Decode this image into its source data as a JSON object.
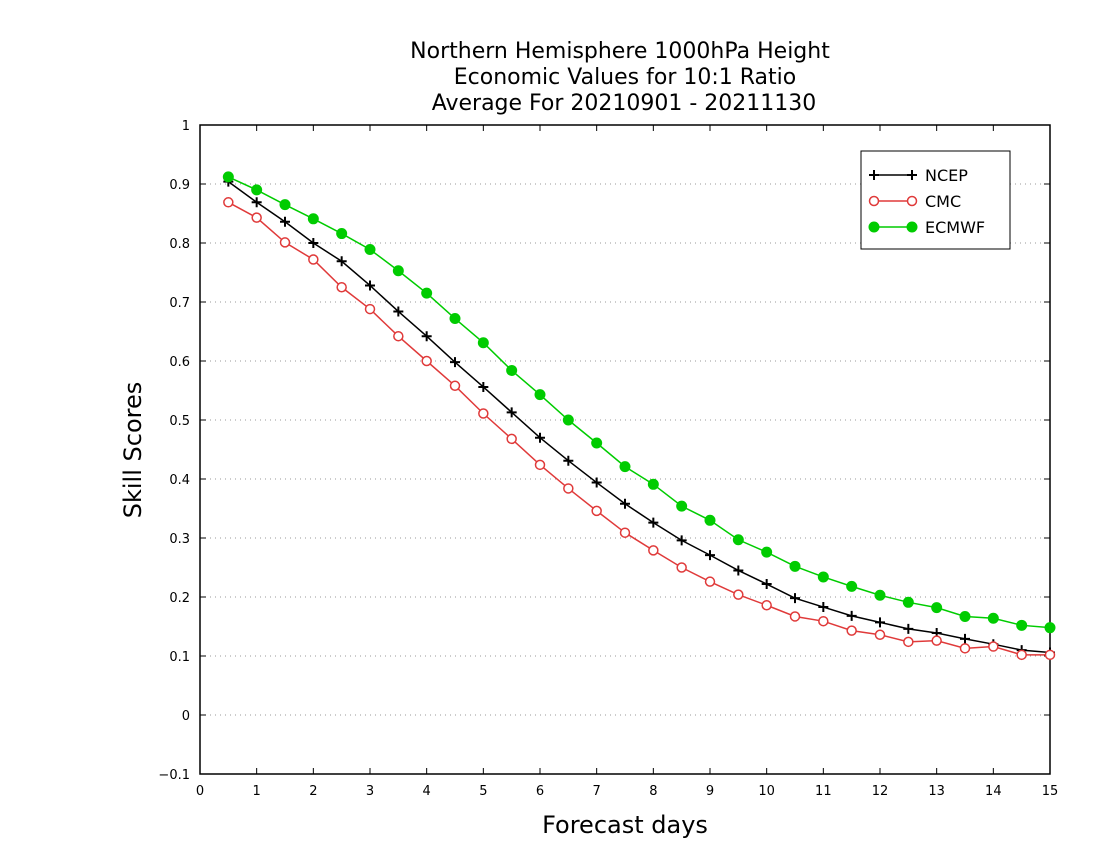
{
  "chart_data": {
    "type": "line",
    "title": [
      "Northern Hemisphere 1000hPa Height",
      "Economic Values for 10:1 Ratio",
      "Average For 20210901 - 20211130"
    ],
    "xlabel": "Forecast days",
    "ylabel": "Skill Scores",
    "xlim": [
      0,
      15
    ],
    "ylim": [
      -0.1,
      1
    ],
    "xticks": [
      "0",
      "1",
      "2",
      "3",
      "4",
      "5",
      "6",
      "7",
      "8",
      "9",
      "10",
      "11",
      "12",
      "13",
      "14",
      "15"
    ],
    "yticks": [
      "-0.1",
      "0",
      "0.1",
      "0.2",
      "0.3",
      "0.4",
      "0.5",
      "0.6",
      "0.7",
      "0.8",
      "0.9",
      "1"
    ],
    "grid": "horizontal dotted",
    "legend_position": "top-right",
    "x": [
      0.5,
      1,
      1.5,
      2,
      2.5,
      3,
      3.5,
      4,
      4.5,
      5,
      5.5,
      6,
      6.5,
      7,
      7.5,
      8,
      8.5,
      9,
      9.5,
      10,
      10.5,
      11,
      11.5,
      12,
      12.5,
      13,
      13.5,
      14,
      14.5,
      15
    ],
    "series": [
      {
        "name": "NCEP",
        "color": "#000000",
        "marker": "plus",
        "values": [
          0.904,
          0.869,
          0.836,
          0.8,
          0.769,
          0.728,
          0.684,
          0.642,
          0.598,
          0.556,
          0.513,
          0.47,
          0.431,
          0.394,
          0.358,
          0.326,
          0.296,
          0.271,
          0.245,
          0.222,
          0.198,
          0.183,
          0.168,
          0.157,
          0.146,
          0.139,
          0.129,
          0.12,
          0.11,
          0.106
        ]
      },
      {
        "name": "CMC",
        "color": "#e03a3a",
        "marker": "open-circle",
        "values": [
          0.869,
          0.843,
          0.801,
          0.772,
          0.725,
          0.688,
          0.642,
          0.6,
          0.558,
          0.511,
          0.468,
          0.424,
          0.384,
          0.346,
          0.309,
          0.279,
          0.25,
          0.226,
          0.204,
          0.186,
          0.167,
          0.159,
          0.143,
          0.136,
          0.124,
          0.126,
          0.113,
          0.116,
          0.102,
          0.102
        ]
      },
      {
        "name": "ECMWF",
        "color": "#00cc00",
        "marker": "filled-circle",
        "values": [
          0.912,
          0.89,
          0.865,
          0.841,
          0.816,
          0.789,
          0.753,
          0.715,
          0.672,
          0.631,
          0.584,
          0.543,
          0.5,
          0.461,
          0.421,
          0.391,
          0.354,
          0.33,
          0.297,
          0.276,
          0.252,
          0.234,
          0.218,
          0.203,
          0.191,
          0.182,
          0.167,
          0.164,
          0.152,
          0.148
        ]
      }
    ]
  }
}
